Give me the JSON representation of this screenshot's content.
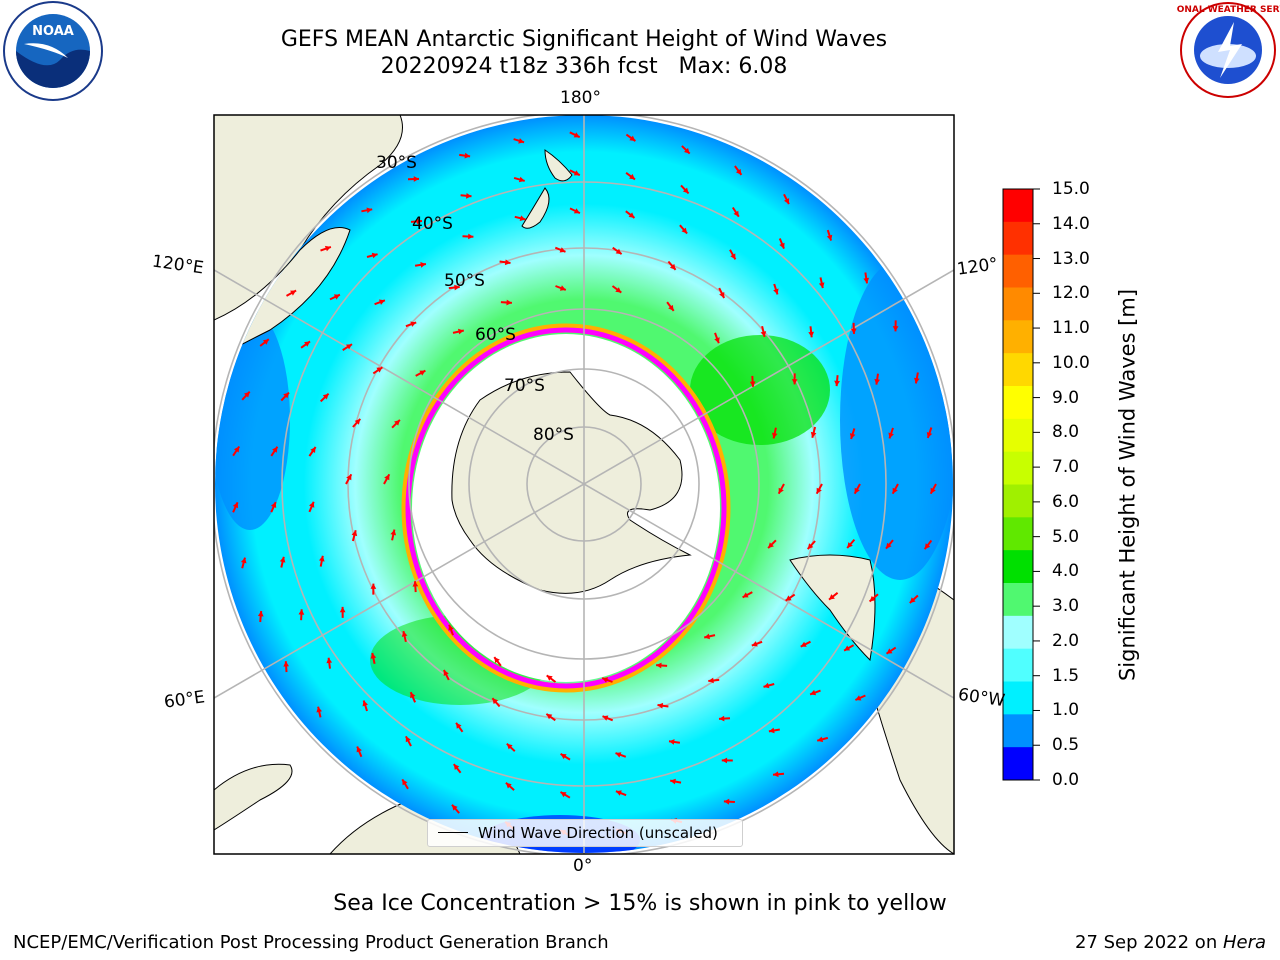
{
  "title": {
    "line1": "GEFS MEAN Antarctic Significant Height of Wind Waves",
    "line2": "20220924 t18z 336h fcst   Max: 6.08"
  },
  "map": {
    "projection": "south-polar-stereographic",
    "longitude_labels": {
      "top": "180°",
      "bottom": "0°",
      "left_upper": "120°E",
      "left_lower": "60°E",
      "right_upper": "120°",
      "right_lower": "60°W"
    },
    "latitude_labels": [
      "30°S",
      "40°S",
      "50°S",
      "60°S",
      "70°S",
      "80°S"
    ],
    "legend": "Wind Wave Direction (unscaled)",
    "land_color": "#eeeedc",
    "arrow_color": "#ff0000",
    "ice_colors": [
      "#ff00ff",
      "#ffb000"
    ]
  },
  "colorbar": {
    "label": "Significant Height of Wind Waves [m]",
    "ticks": [
      "15.0",
      "14.0",
      "13.0",
      "12.0",
      "11.0",
      "10.0",
      "9.0",
      "8.0",
      "7.0",
      "6.0",
      "5.0",
      "4.0",
      "3.0",
      "2.0",
      "1.5",
      "1.0",
      "0.5",
      "0.0"
    ],
    "colors": [
      "#ff0000",
      "#ff3000",
      "#ff6000",
      "#ff8a00",
      "#ffb000",
      "#ffd800",
      "#ffff00",
      "#e6ff00",
      "#c8ff00",
      "#a0f000",
      "#60e800",
      "#00e000",
      "#50f870",
      "#a0ffff",
      "#50ffff",
      "#00f0ff",
      "#0090ff",
      "#0000ff"
    ]
  },
  "caption": "Sea Ice Concentration > 15% is shown in pink to yellow",
  "footer": {
    "left": "NCEP/EMC/Verification Post Processing Product Generation Branch",
    "right_date": "27 Sep 2022 on ",
    "right_host": "Hera"
  },
  "logos": {
    "noaa": "NOAA",
    "nws": "NATIONAL WEATHER SERVICE"
  }
}
